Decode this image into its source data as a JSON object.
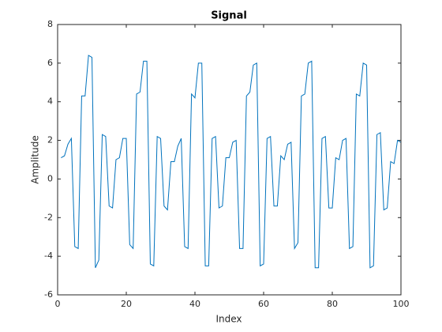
{
  "chart_data": {
    "type": "line",
    "title": "Signal",
    "xlabel": "Index",
    "ylabel": "Amplitude",
    "x": [
      1,
      2,
      3,
      4,
      5,
      6,
      7,
      8,
      9,
      10,
      11,
      12,
      13,
      14,
      15,
      16,
      17,
      18,
      19,
      20,
      21,
      22,
      23,
      24,
      25,
      26,
      27,
      28,
      29,
      30,
      31,
      32,
      33,
      34,
      35,
      36,
      37,
      38,
      39,
      40,
      41,
      42,
      43,
      44,
      45,
      46,
      47,
      48,
      49,
      50,
      51,
      52,
      53,
      54,
      55,
      56,
      57,
      58,
      59,
      60,
      61,
      62,
      63,
      64,
      65,
      66,
      67,
      68,
      69,
      70,
      71,
      72,
      73,
      74,
      75,
      76,
      77,
      78,
      79,
      80,
      81,
      82,
      83,
      84,
      85,
      86,
      87,
      88,
      89,
      90,
      91,
      92,
      93,
      94,
      95,
      96,
      97,
      98,
      99,
      100
    ],
    "values": [
      1.1,
      1.2,
      1.8,
      2.1,
      -3.5,
      -3.6,
      4.3,
      4.3,
      6.4,
      6.3,
      -4.6,
      -4.2,
      2.3,
      2.2,
      -1.4,
      -1.5,
      1.0,
      1.1,
      2.1,
      2.1,
      -3.4,
      -3.6,
      4.4,
      4.5,
      6.1,
      6.1,
      -4.4,
      -4.5,
      2.2,
      2.1,
      -1.4,
      -1.6,
      0.9,
      0.9,
      1.7,
      2.1,
      -3.5,
      -3.6,
      4.4,
      4.2,
      6.0,
      6.0,
      -4.5,
      -4.5,
      2.1,
      2.2,
      -1.5,
      -1.4,
      1.1,
      1.1,
      1.9,
      2.0,
      -3.6,
      -3.6,
      4.3,
      4.5,
      5.9,
      6.0,
      -4.5,
      -4.4,
      2.1,
      2.2,
      -1.4,
      -1.4,
      1.2,
      1.0,
      1.8,
      1.9,
      -3.6,
      -3.3,
      4.3,
      4.4,
      6.0,
      6.1,
      -4.6,
      -4.6,
      2.1,
      2.2,
      -1.5,
      -1.5,
      1.1,
      1.0,
      2.0,
      2.1,
      -3.6,
      -3.5,
      4.4,
      4.3,
      6.0,
      5.9,
      -4.6,
      -4.5,
      2.3,
      2.4,
      -1.6,
      -1.5,
      0.9,
      0.8,
      2.0,
      1.9
    ],
    "color": "#0072bd",
    "xlim": [
      0,
      100
    ],
    "ylim": [
      -6,
      8
    ],
    "xticks": [
      0,
      20,
      40,
      60,
      80,
      100
    ],
    "yticks": [
      -6,
      -4,
      -2,
      0,
      2,
      4,
      6,
      8
    ],
    "grid": false
  }
}
